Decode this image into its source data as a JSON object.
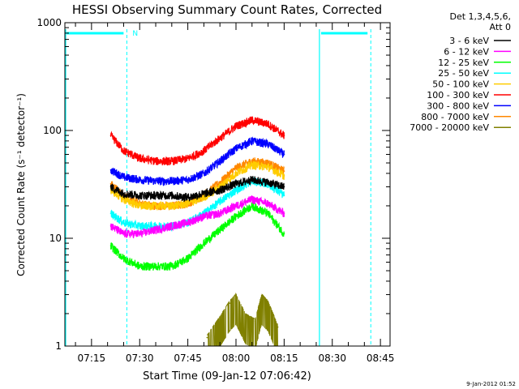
{
  "chart_data": {
    "type": "line",
    "title": "HESSI Observing Summary Count Rates, Corrected",
    "xlabel": "Start Time (09-Jan-12 07:06:42)",
    "ylabel": "Corrected Count Rate (s⁻¹ detector⁻¹)",
    "yscale": "log",
    "ylim": [
      1,
      1000
    ],
    "xlim": [
      "07:06:42",
      "08:48:00"
    ],
    "x_ticks": [
      "07:15",
      "07:30",
      "07:45",
      "08:00",
      "08:15",
      "08:30",
      "08:45"
    ],
    "y_ticks": [
      "1",
      "10",
      "100",
      "1000"
    ],
    "legend_title": [
      "Det 1,3,4,5,6,",
      "Att 0"
    ],
    "legend_position": "right-outside",
    "footer": "9-Jan-2012 01:52",
    "series": [
      {
        "name": "3 - 6 keV",
        "color": "#000000",
        "x": [
          "07:21",
          "07:25",
          "07:30",
          "07:35",
          "07:40",
          "07:45",
          "07:50",
          "07:55",
          "08:00",
          "08:05",
          "08:10",
          "08:15"
        ],
        "values": [
          30,
          26,
          25,
          25,
          25,
          24,
          26,
          28,
          32,
          35,
          33,
          30
        ]
      },
      {
        "name": "6 - 12 keV",
        "color": "#ff00ff",
        "x": [
          "07:21",
          "07:25",
          "07:30",
          "07:35",
          "07:40",
          "07:45",
          "07:50",
          "07:55",
          "08:00",
          "08:05",
          "08:10",
          "08:15"
        ],
        "values": [
          13,
          11,
          11,
          12,
          13,
          14,
          16,
          17,
          20,
          23,
          21,
          17
        ]
      },
      {
        "name": "12 - 25 keV",
        "color": "#00ff00",
        "x": [
          "07:21",
          "07:25",
          "07:30",
          "07:35",
          "07:40",
          "07:45",
          "07:50",
          "07:55",
          "08:00",
          "08:05",
          "08:10",
          "08:15"
        ],
        "values": [
          8.5,
          6.5,
          5.5,
          5.5,
          5.5,
          6.5,
          9,
          12,
          16,
          20,
          17,
          11
        ]
      },
      {
        "name": "25 - 50 keV",
        "color": "#00ffff",
        "x": [
          "07:21",
          "07:25",
          "07:30",
          "07:35",
          "07:40",
          "07:45",
          "07:50",
          "07:55",
          "08:00",
          "08:05",
          "08:10",
          "08:15"
        ],
        "values": [
          17,
          14,
          13,
          13,
          13,
          14,
          17,
          22,
          28,
          34,
          32,
          25
        ]
      },
      {
        "name": "50 - 100 keV",
        "color": "#ffcc00",
        "x": [
          "07:21",
          "07:25",
          "07:30",
          "07:35",
          "07:40",
          "07:45",
          "07:50",
          "07:55",
          "08:00",
          "08:05",
          "08:10",
          "08:15"
        ],
        "values": [
          28,
          23,
          20,
          20,
          20,
          21,
          24,
          30,
          40,
          48,
          46,
          38
        ]
      },
      {
        "name": "100 - 300 keV",
        "color": "#ff0000",
        "x": [
          "07:21",
          "07:25",
          "07:30",
          "07:35",
          "07:40",
          "07:45",
          "07:50",
          "07:55",
          "08:00",
          "08:05",
          "08:10",
          "08:15"
        ],
        "values": [
          90,
          65,
          55,
          52,
          52,
          55,
          65,
          85,
          110,
          125,
          115,
          90
        ]
      },
      {
        "name": "300 - 800 keV",
        "color": "#0000ff",
        "x": [
          "07:21",
          "07:25",
          "07:30",
          "07:35",
          "07:40",
          "07:45",
          "07:50",
          "07:55",
          "08:00",
          "08:05",
          "08:10",
          "08:15"
        ],
        "values": [
          43,
          37,
          35,
          34,
          34,
          35,
          40,
          52,
          68,
          80,
          75,
          60
        ]
      },
      {
        "name": "800 - 7000 keV",
        "color": "#ff8800",
        "x": [
          "07:21",
          "07:25",
          "07:30",
          "07:35",
          "07:40",
          "07:45",
          "07:50",
          "07:55",
          "08:00",
          "08:05",
          "08:10",
          "08:15"
        ],
        "values": [
          32,
          25,
          21,
          20,
          20,
          21,
          25,
          33,
          45,
          52,
          50,
          42
        ]
      },
      {
        "name": "7000 - 20000 keV",
        "color": "#808000",
        "x": [
          "07:51",
          "07:55",
          "07:58",
          "08:00",
          "08:03",
          "08:06",
          "08:08",
          "08:10",
          "08:13"
        ],
        "values": [
          1.2,
          1.8,
          2.5,
          2.9,
          1.9,
          1.7,
          2.9,
          2.5,
          1.5
        ]
      }
    ],
    "annotations": [
      {
        "type": "attenuator-state",
        "label": "N",
        "color": "#00ffff",
        "start": "07:06:42",
        "end": "07:26:00"
      },
      {
        "type": "attenuator-state",
        "label": "",
        "color": "#00ffff",
        "start": "08:26:00",
        "end": "08:42:00"
      }
    ]
  }
}
